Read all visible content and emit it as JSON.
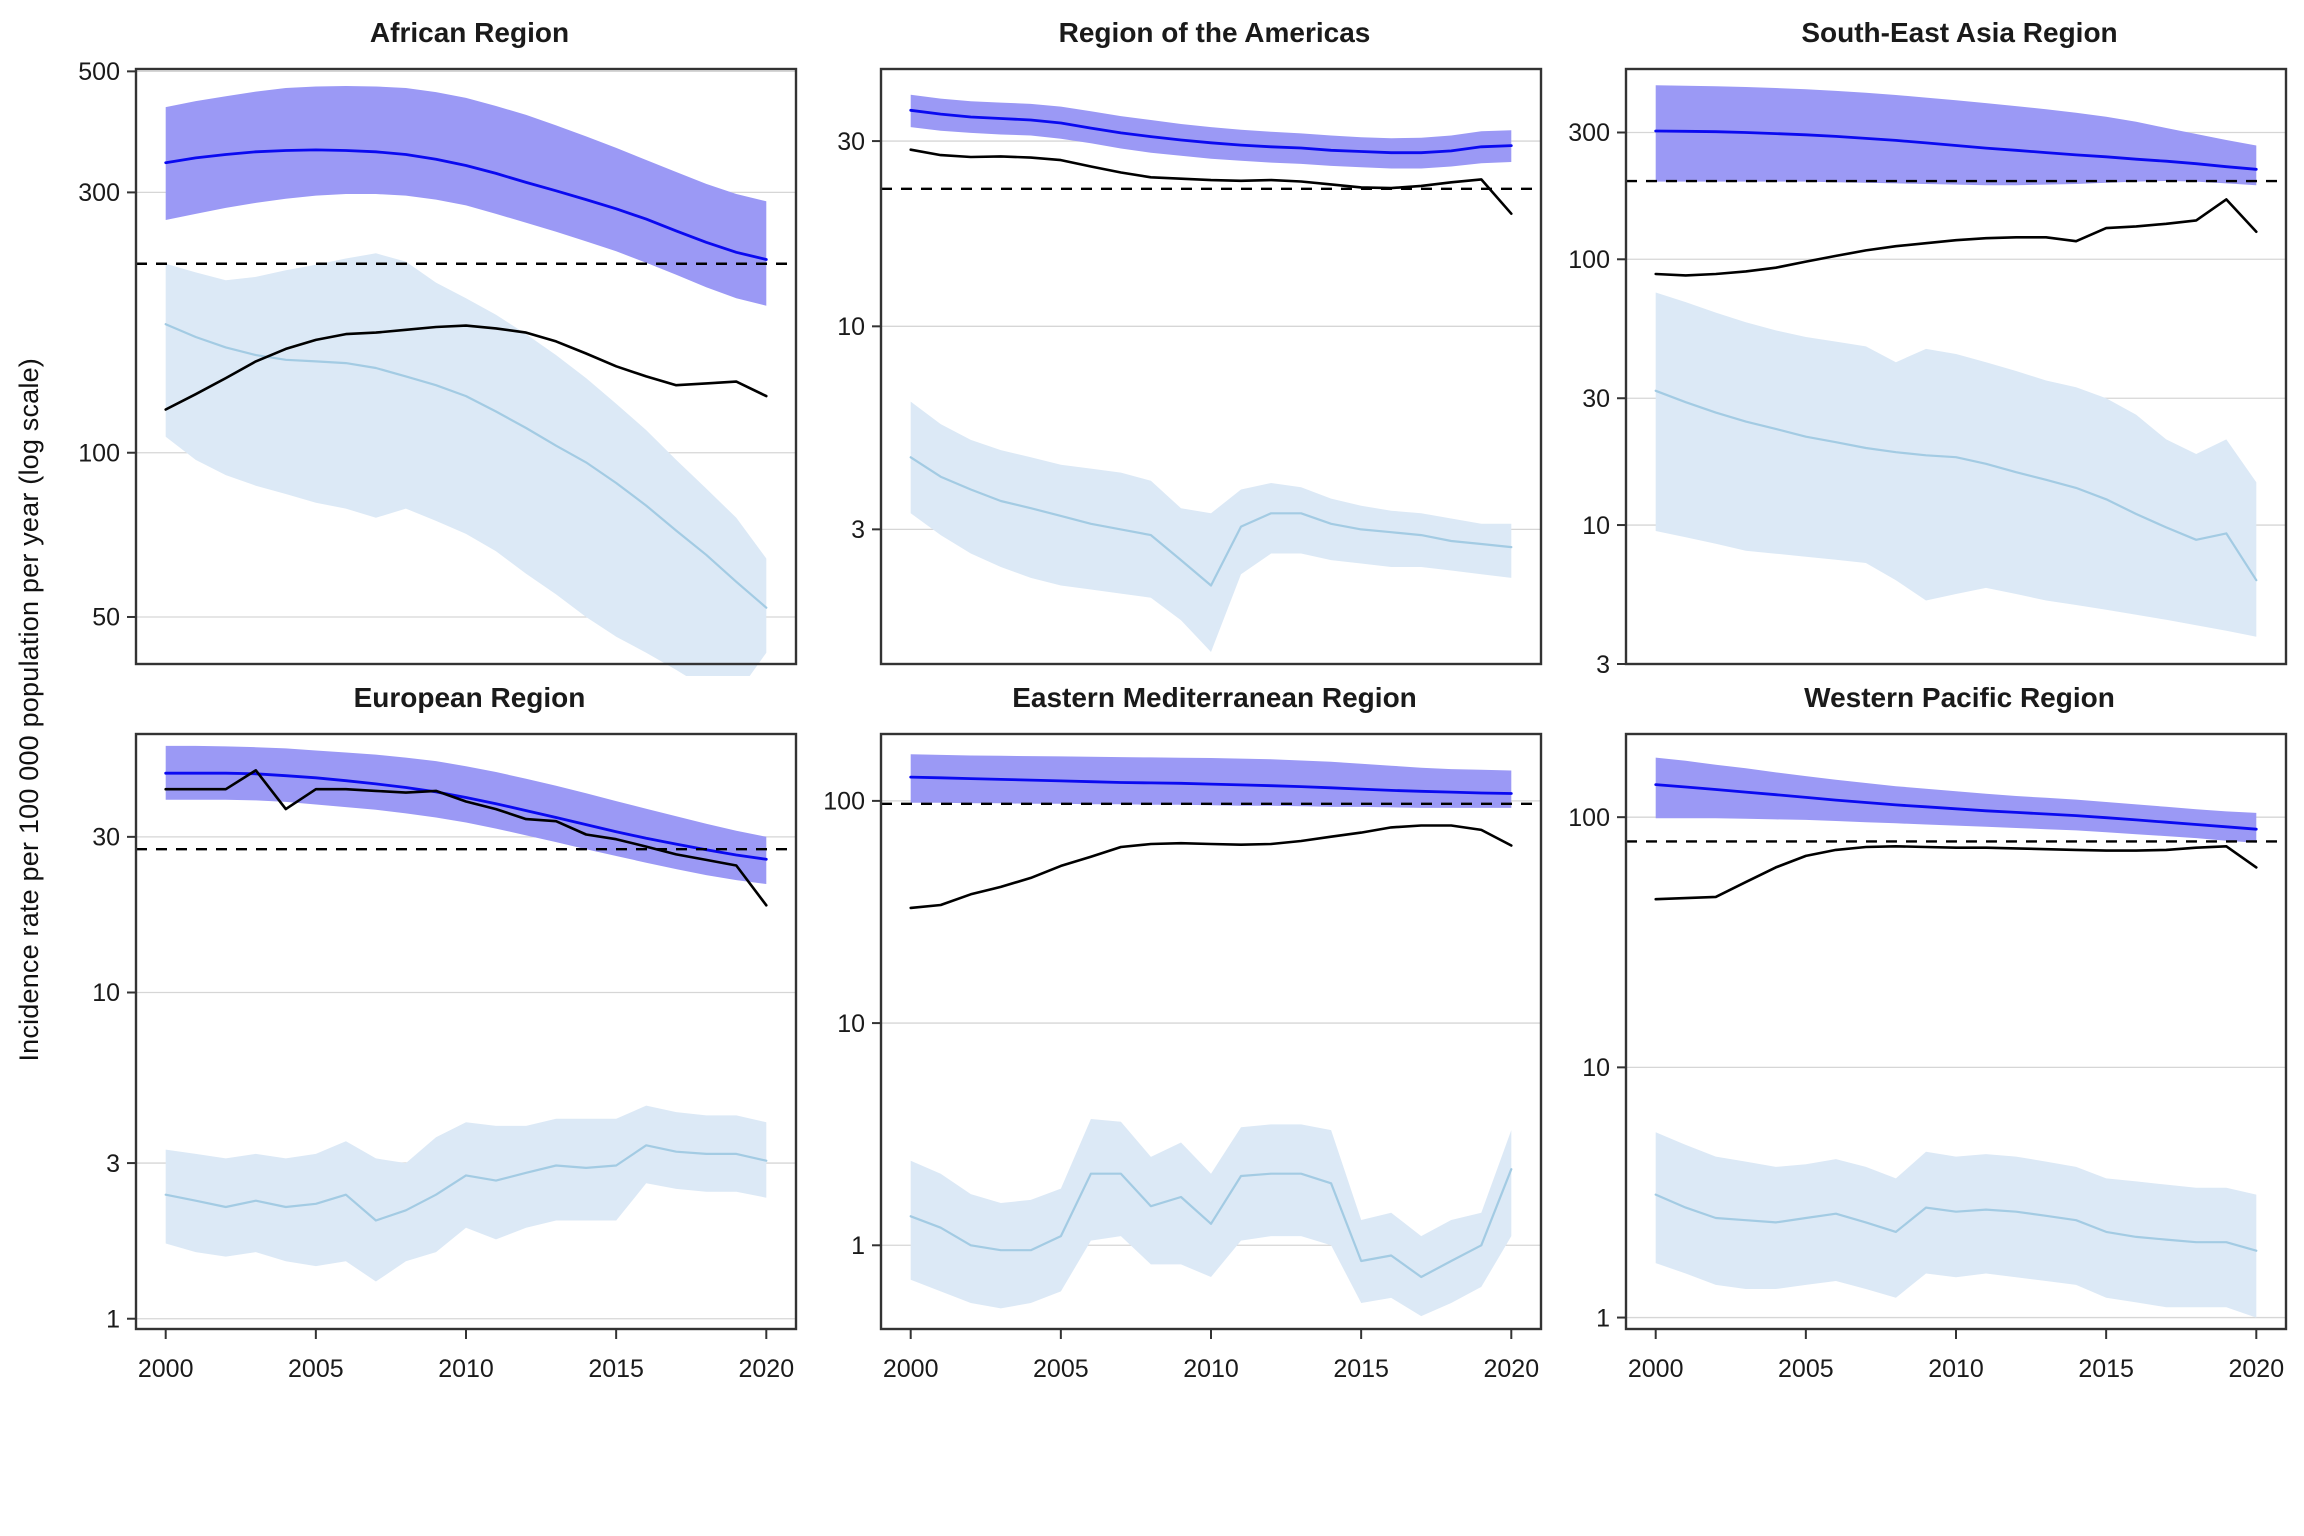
{
  "figure": {
    "y_axis_title": "Incidence rate per 100 000 population per year (log scale)",
    "colors": {
      "incidence_line": "#0a0af0",
      "incidence_ribbon": "#9b99f5",
      "notifications_line": "#000000",
      "hiv_line": "#a3cbe3",
      "hiv_ribbon": "#dce9f6",
      "milestone_dashed": "#000000",
      "gridline": "#d6d6d6",
      "panel_border": "#333333",
      "tick_text": "#1a1a1a"
    }
  },
  "chart_data": {
    "type": "line",
    "x_label": "",
    "y_label": "Incidence rate per 100 000 population per year (log scale)",
    "x": [
      2000,
      2001,
      2002,
      2003,
      2004,
      2005,
      2006,
      2007,
      2008,
      2009,
      2010,
      2011,
      2012,
      2013,
      2014,
      2015,
      2016,
      2017,
      2018,
      2019,
      2020
    ],
    "x_ticks": [
      2000,
      2005,
      2010,
      2015,
      2020
    ],
    "series_names": [
      "estimated_incidence",
      "incidence_ci_low",
      "incidence_ci_high",
      "notifications",
      "hiv_positive_incidence",
      "hiv_ci_low",
      "hiv_ci_high",
      "milestone_dashed_line"
    ],
    "panels": [
      {
        "title": "African Region",
        "ylim": [
          41,
          505
        ],
        "yticks": [
          500,
          300,
          100,
          50
        ],
        "milestone": 222,
        "incidence": [
          340,
          347,
          352,
          356,
          358,
          359,
          358,
          356,
          352,
          345,
          336,
          325,
          313,
          302,
          291,
          280,
          268,
          255,
          243,
          233,
          226
        ],
        "incidence_high": [
          430,
          441,
          450,
          459,
          466,
          469,
          470,
          469,
          466,
          458,
          447,
          432,
          416,
          398,
          380,
          362,
          344,
          327,
          311,
          298,
          289
        ],
        "incidence_low": [
          267,
          274,
          281,
          287,
          292,
          296,
          298,
          298,
          296,
          291,
          284,
          274,
          264,
          254,
          244,
          234,
          223,
          212,
          201,
          192,
          186
        ],
        "notifications": [
          120,
          128,
          137,
          147,
          155,
          161,
          165,
          166,
          168,
          170,
          171,
          169,
          166,
          160,
          152,
          144,
          138,
          133,
          134,
          135,
          127
        ],
        "hiv": [
          172,
          163,
          156,
          151,
          148,
          147,
          146,
          143,
          138,
          133,
          127,
          119,
          111,
          103,
          96,
          88,
          80,
          72,
          65,
          58,
          52
        ],
        "hiv_high": [
          222,
          214,
          207,
          210,
          216,
          221,
          227,
          232,
          224,
          205,
          192,
          179,
          165,
          151,
          137,
          123,
          110,
          97,
          86,
          76,
          64
        ],
        "hiv_low": [
          107,
          97,
          91,
          87,
          84,
          81,
          79,
          76,
          79,
          75,
          71,
          66,
          60,
          55,
          50,
          46,
          43,
          40,
          37,
          36,
          43
        ]
      },
      {
        "title": "Region of the Americas",
        "ylim": [
          1.35,
          46
        ],
        "yticks": [
          30,
          10,
          3
        ],
        "milestone": 22.6,
        "incidence": [
          36,
          35.2,
          34.6,
          34.3,
          34,
          33.4,
          32.4,
          31.5,
          30.8,
          30.2,
          29.7,
          29.3,
          29,
          28.8,
          28.4,
          28.2,
          28,
          28,
          28.3,
          29,
          29.2
        ],
        "incidence_high": [
          39.5,
          38.6,
          38,
          37.7,
          37.4,
          36.8,
          35.8,
          34.8,
          34,
          33.2,
          32.6,
          32.1,
          31.7,
          31.4,
          31,
          30.7,
          30.5,
          30.6,
          31,
          31.8,
          32
        ],
        "incidence_low": [
          32.6,
          31.9,
          31.5,
          31.2,
          31,
          30.4,
          29.6,
          28.7,
          28,
          27.5,
          27,
          26.7,
          26.4,
          26.2,
          25.9,
          25.7,
          25.5,
          25.5,
          25.8,
          26.3,
          26.5
        ],
        "notifications": [
          28.5,
          27.6,
          27.3,
          27.4,
          27.2,
          26.8,
          25.8,
          24.9,
          24.2,
          24,
          23.8,
          23.7,
          23.8,
          23.6,
          23.2,
          22.8,
          22.7,
          23,
          23.5,
          23.9,
          19.5
        ],
        "hiv": [
          4.6,
          4.1,
          3.8,
          3.55,
          3.4,
          3.25,
          3.1,
          3.0,
          2.9,
          2.5,
          2.15,
          3.05,
          3.3,
          3.3,
          3.1,
          3.0,
          2.95,
          2.9,
          2.8,
          2.75,
          2.7
        ],
        "hiv_high": [
          6.4,
          5.6,
          5.1,
          4.8,
          4.6,
          4.4,
          4.3,
          4.2,
          4.0,
          3.4,
          3.3,
          3.8,
          3.95,
          3.85,
          3.6,
          3.45,
          3.35,
          3.3,
          3.2,
          3.1,
          3.1
        ],
        "hiv_low": [
          3.3,
          2.9,
          2.6,
          2.4,
          2.25,
          2.15,
          2.1,
          2.05,
          2.0,
          1.75,
          1.45,
          2.3,
          2.6,
          2.6,
          2.5,
          2.45,
          2.4,
          2.4,
          2.35,
          2.3,
          2.25
        ]
      },
      {
        "title": "South-East Asia Region",
        "ylim": [
          3,
          520
        ],
        "yticks": [
          300,
          100,
          30,
          10,
          3
        ],
        "milestone": 197,
        "incidence": [
          304,
          303,
          302,
          300,
          297,
          294,
          290,
          285,
          280,
          274,
          268,
          262,
          257,
          252,
          247,
          243,
          238,
          234,
          229,
          223,
          218
        ],
        "incidence_high": [
          452,
          450,
          448,
          445,
          441,
          436,
          430,
          423,
          415,
          406,
          397,
          387,
          377,
          367,
          356,
          344,
          329,
          312,
          296,
          281,
          268
        ],
        "incidence_low": [
          196,
          196,
          196,
          196,
          196,
          196,
          195,
          194,
          193,
          192,
          191,
          190,
          190,
          191,
          192,
          194,
          196,
          197,
          196,
          193,
          190
        ],
        "notifications": [
          88,
          87,
          88,
          90,
          93,
          98,
          103,
          108,
          112,
          115,
          118,
          120,
          121,
          121,
          117,
          131,
          133,
          136,
          140,
          168,
          127
        ],
        "hiv": [
          32,
          29,
          26.5,
          24.5,
          23,
          21.5,
          20.5,
          19.5,
          18.8,
          18.3,
          18,
          17,
          15.8,
          14.8,
          13.8,
          12.5,
          11,
          9.8,
          8.8,
          9.3,
          6.2
        ],
        "hiv_high": [
          75,
          69,
          63,
          58,
          54,
          51,
          49,
          47,
          41,
          46,
          44,
          41,
          38,
          35,
          33,
          30,
          26,
          21,
          18.5,
          21,
          14.5
        ],
        "hiv_low": [
          9.5,
          9,
          8.5,
          8,
          7.8,
          7.6,
          7.4,
          7.2,
          6.2,
          5.2,
          5.5,
          5.8,
          5.5,
          5.2,
          5,
          4.8,
          4.6,
          4.4,
          4.2,
          4,
          3.8
        ]
      },
      {
        "title": "European Region",
        "ylim": [
          0.93,
          62
        ],
        "yticks": [
          30,
          10,
          3,
          1
        ],
        "milestone": 27.5,
        "incidence": [
          47,
          47,
          47,
          46.8,
          46.2,
          45.5,
          44.6,
          43.6,
          42.5,
          41.2,
          39.6,
          37.9,
          36.1,
          34.4,
          32.7,
          31.1,
          29.7,
          28.5,
          27.4,
          26.4,
          25.6
        ],
        "incidence_high": [
          57,
          57,
          56.8,
          56.5,
          56,
          55.2,
          54.4,
          53.6,
          52.5,
          51.2,
          49.4,
          47.4,
          45.2,
          43,
          40.8,
          38.6,
          36.6,
          34.7,
          32.9,
          31.3,
          30
        ],
        "incidence_low": [
          39,
          39,
          39,
          38.8,
          38.4,
          37.7,
          37,
          36.3,
          35.4,
          34.4,
          33.2,
          31.8,
          30.3,
          28.9,
          27.5,
          26.2,
          25,
          23.9,
          22.9,
          22.1,
          21.5
        ],
        "notifications": [
          42,
          42,
          42,
          48,
          36.5,
          42,
          42,
          41.5,
          41,
          41.5,
          38.5,
          36.5,
          34,
          33.5,
          30.5,
          29.5,
          28,
          26.5,
          25.5,
          24.5,
          18.5
        ],
        "hiv": [
          2.4,
          2.3,
          2.2,
          2.3,
          2.2,
          2.25,
          2.4,
          2.0,
          2.15,
          2.4,
          2.75,
          2.65,
          2.8,
          2.95,
          2.9,
          2.95,
          3.4,
          3.25,
          3.2,
          3.2,
          3.05
        ],
        "hiv_high": [
          3.3,
          3.2,
          3.1,
          3.2,
          3.1,
          3.2,
          3.5,
          3.1,
          3.0,
          3.6,
          4.0,
          3.9,
          3.9,
          4.1,
          4.1,
          4.1,
          4.5,
          4.3,
          4.2,
          4.2,
          4.0
        ],
        "hiv_low": [
          1.7,
          1.6,
          1.55,
          1.6,
          1.5,
          1.45,
          1.5,
          1.3,
          1.5,
          1.6,
          1.9,
          1.75,
          1.9,
          2.0,
          2.0,
          2.0,
          2.6,
          2.5,
          2.45,
          2.45,
          2.35
        ]
      },
      {
        "title": "Eastern Mediterranean Region",
        "ylim": [
          0.42,
          200
        ],
        "yticks": [
          100,
          10,
          1
        ],
        "milestone": 97,
        "incidence": [
          128,
          127,
          126,
          125,
          124,
          123,
          122,
          121,
          120.5,
          120,
          119,
          118,
          117,
          116,
          114.5,
          113,
          111.5,
          110.5,
          109.5,
          108.5,
          108
        ],
        "incidence_high": [
          162,
          161,
          160,
          159.5,
          159,
          158.5,
          158,
          157.5,
          157,
          156.5,
          156,
          155,
          154,
          152,
          150,
          147,
          144,
          141,
          139,
          138,
          137
        ],
        "incidence_low": [
          98,
          98,
          97.5,
          97.5,
          97,
          97,
          96.5,
          96.5,
          96,
          96,
          95.5,
          95,
          95,
          94.5,
          94,
          94,
          93.5,
          93,
          93,
          93,
          93
        ],
        "notifications": [
          33,
          34,
          38,
          41,
          45,
          51,
          56,
          62,
          64,
          64.5,
          64,
          63.5,
          64,
          66,
          69,
          72,
          76,
          77.5,
          77.5,
          74,
          63
        ],
        "hiv": [
          1.35,
          1.2,
          1.0,
          0.95,
          0.95,
          1.1,
          2.1,
          2.1,
          1.5,
          1.65,
          1.25,
          2.05,
          2.1,
          2.1,
          1.9,
          0.85,
          0.9,
          0.72,
          0.85,
          1.0,
          2.2
        ],
        "hiv_high": [
          2.4,
          2.1,
          1.7,
          1.55,
          1.6,
          1.8,
          3.7,
          3.6,
          2.5,
          2.9,
          2.1,
          3.4,
          3.5,
          3.5,
          3.3,
          1.3,
          1.4,
          1.1,
          1.3,
          1.4,
          3.3
        ],
        "hiv_low": [
          0.7,
          0.62,
          0.55,
          0.52,
          0.55,
          0.62,
          1.05,
          1.1,
          0.82,
          0.82,
          0.72,
          1.05,
          1.1,
          1.1,
          1.0,
          0.55,
          0.58,
          0.48,
          0.55,
          0.65,
          1.1
        ]
      },
      {
        "title": "Western Pacific Region",
        "ylim": [
          0.9,
          215
        ],
        "yticks": [
          100,
          10,
          1
        ],
        "milestone": 80,
        "incidence": [
          135,
          132,
          129,
          126,
          123,
          120,
          117,
          114.5,
          112,
          110,
          108,
          106,
          104.5,
          103,
          101.5,
          99.5,
          97.5,
          95.5,
          93.5,
          91.5,
          89.5
        ],
        "incidence_high": [
          173,
          168,
          162,
          157,
          151,
          146,
          141,
          137,
          133,
          130,
          127,
          124,
          121.5,
          119.5,
          117.5,
          115,
          112.5,
          110,
          107.5,
          105.5,
          104
        ],
        "incidence_low": [
          99,
          99,
          99,
          98.5,
          98,
          97.5,
          96.5,
          95.5,
          94.5,
          93.5,
          92.5,
          91.5,
          90.5,
          89.5,
          88.5,
          87,
          85.5,
          84,
          82.5,
          80.5,
          79
        ],
        "notifications": [
          47,
          47.5,
          48,
          55,
          63,
          70,
          74,
          76,
          76.5,
          76,
          75.5,
          75.5,
          75,
          74.5,
          74,
          73.5,
          73.5,
          74,
          75.5,
          76.5,
          63
        ],
        "hiv": [
          3.1,
          2.75,
          2.5,
          2.45,
          2.4,
          2.5,
          2.6,
          2.4,
          2.2,
          2.75,
          2.65,
          2.7,
          2.65,
          2.55,
          2.45,
          2.2,
          2.1,
          2.05,
          2.0,
          2.0,
          1.85
        ],
        "hiv_high": [
          5.5,
          4.9,
          4.4,
          4.2,
          4.0,
          4.1,
          4.3,
          4.0,
          3.6,
          4.6,
          4.4,
          4.5,
          4.4,
          4.2,
          4.0,
          3.6,
          3.5,
          3.4,
          3.3,
          3.3,
          3.1
        ],
        "hiv_low": [
          1.65,
          1.5,
          1.35,
          1.3,
          1.3,
          1.35,
          1.4,
          1.3,
          1.2,
          1.5,
          1.45,
          1.5,
          1.45,
          1.4,
          1.35,
          1.2,
          1.15,
          1.1,
          1.1,
          1.1,
          1.0
        ]
      }
    ]
  }
}
